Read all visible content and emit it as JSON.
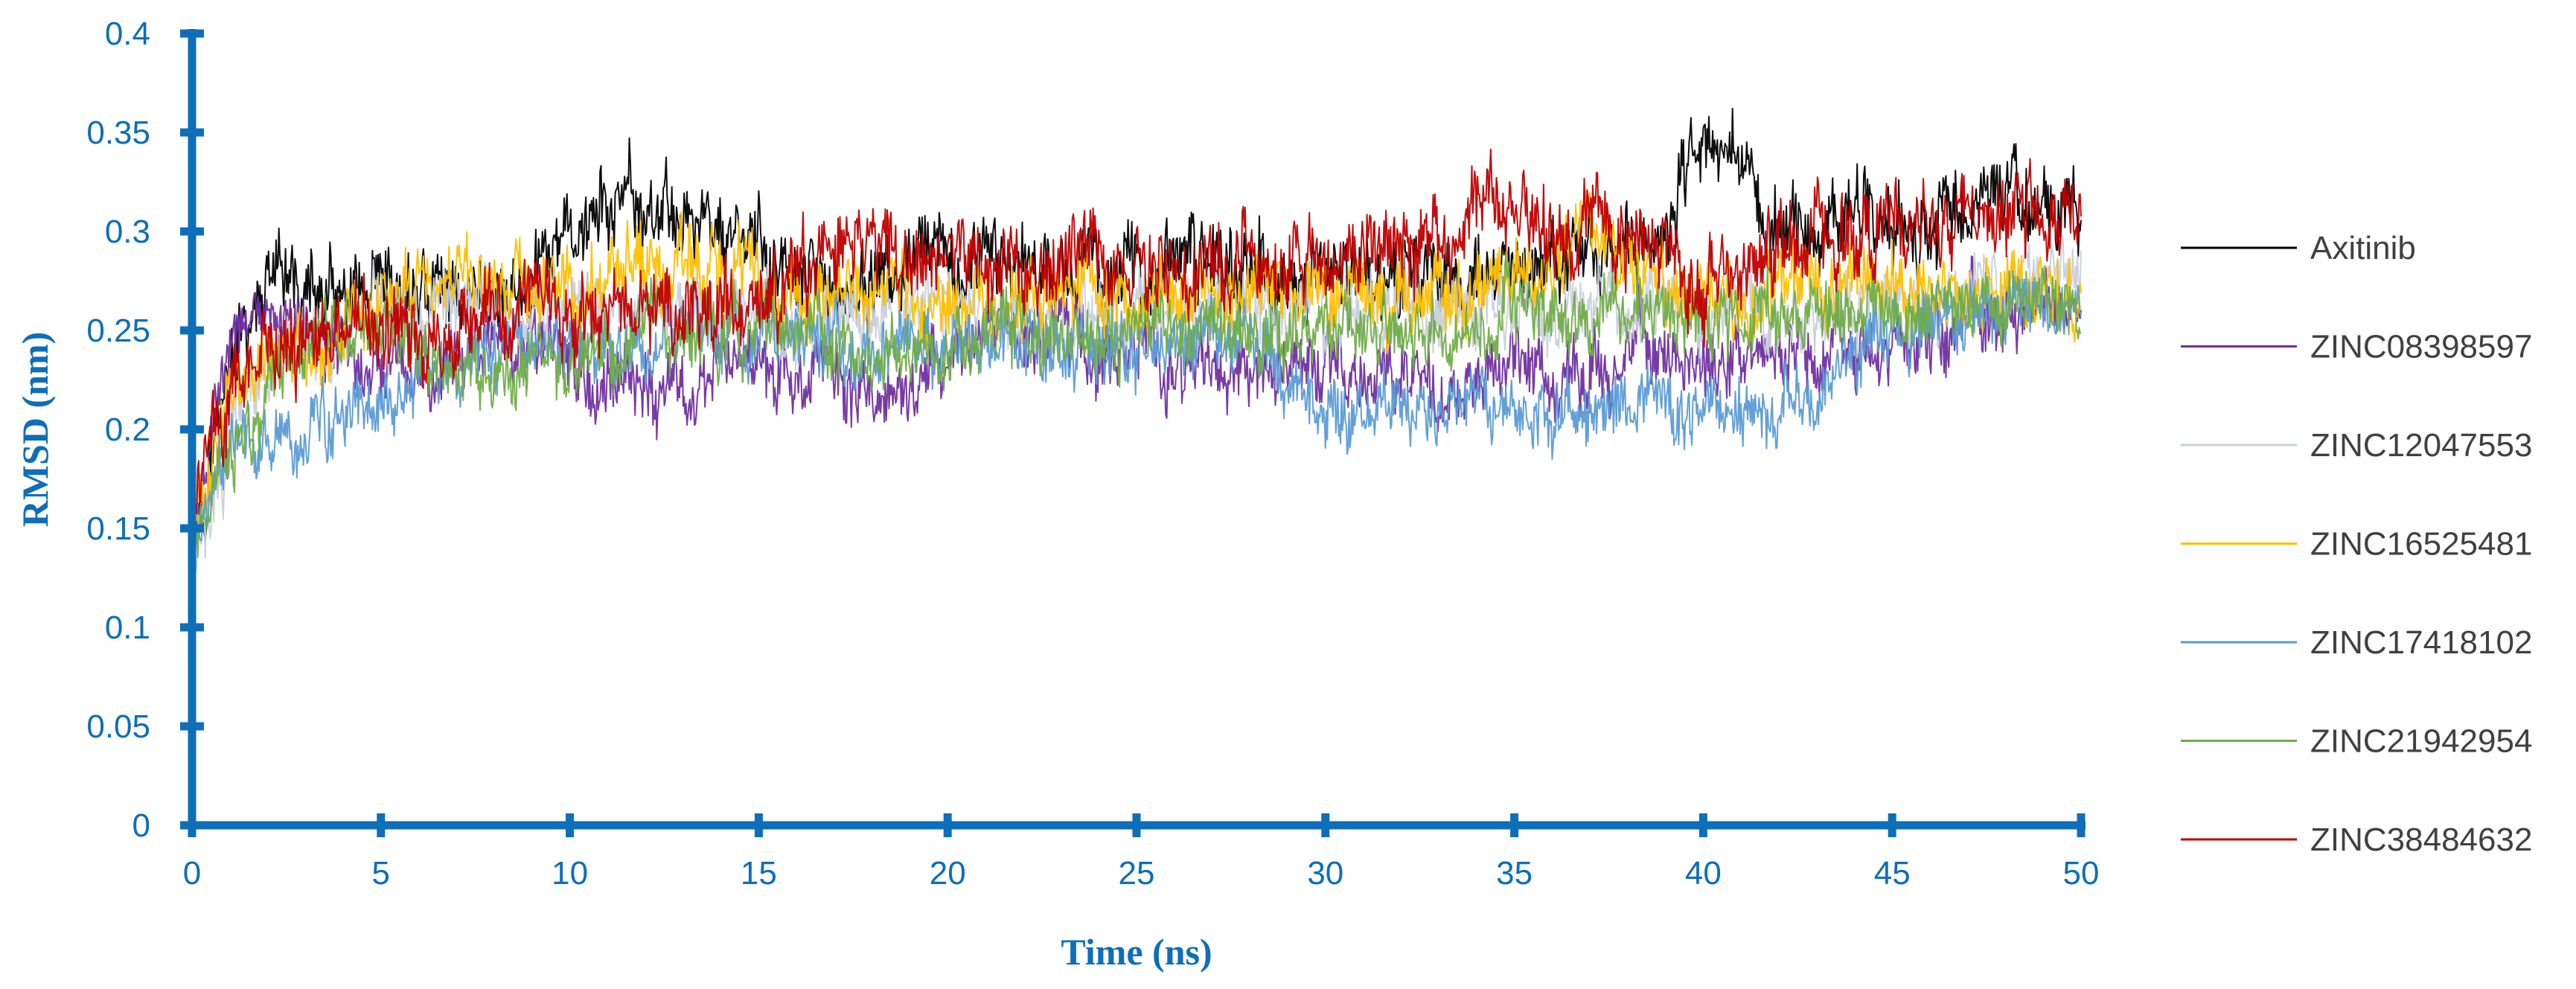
{
  "chart_data": {
    "type": "line",
    "title": "",
    "xlabel": "Time (ns)",
    "ylabel": "RMSD (nm)",
    "xlim": [
      0,
      50
    ],
    "ylim": [
      0,
      0.4
    ],
    "xticks": [
      0,
      5,
      10,
      15,
      20,
      25,
      30,
      35,
      40,
      45,
      50
    ],
    "yticks": [
      0,
      0.05,
      0.1,
      0.15,
      0.2,
      0.25,
      0.3,
      0.35,
      0.4
    ],
    "xtick_labels": [
      "0",
      "5",
      "10",
      "15",
      "20",
      "25",
      "30",
      "35",
      "40",
      "45",
      "50"
    ],
    "ytick_labels": [
      "0",
      "0.05",
      "0.1",
      "0.15",
      "0.2",
      "0.25",
      "0.3",
      "0.35",
      "0.4"
    ],
    "grid": false,
    "legend_position": "right",
    "x": [
      0,
      0.5,
      1,
      2,
      3,
      4,
      5,
      6,
      7,
      8,
      9,
      10,
      11,
      12,
      13,
      14,
      15,
      16,
      17,
      18,
      19,
      20,
      21,
      22,
      23,
      24,
      25,
      26,
      27,
      28,
      29,
      30,
      31,
      32,
      33,
      34,
      35,
      36,
      37,
      38,
      39,
      40,
      41,
      42,
      43,
      44,
      45,
      46,
      47,
      48,
      49,
      50
    ],
    "series": [
      {
        "name": "Axitinib",
        "color": "#000000",
        "noise": 0.018,
        "values": [
          0.14,
          0.19,
          0.23,
          0.27,
          0.27,
          0.26,
          0.26,
          0.27,
          0.27,
          0.27,
          0.27,
          0.3,
          0.31,
          0.31,
          0.31,
          0.3,
          0.29,
          0.27,
          0.27,
          0.27,
          0.28,
          0.28,
          0.28,
          0.29,
          0.28,
          0.28,
          0.28,
          0.28,
          0.29,
          0.28,
          0.27,
          0.28,
          0.28,
          0.28,
          0.28,
          0.28,
          0.27,
          0.28,
          0.29,
          0.29,
          0.3,
          0.35,
          0.34,
          0.3,
          0.3,
          0.31,
          0.31,
          0.3,
          0.31,
          0.32,
          0.31,
          0.31
        ]
      },
      {
        "name": "ZINC08398597",
        "color": "#7030A0",
        "noise": 0.016,
        "values": [
          0.14,
          0.2,
          0.24,
          0.26,
          0.25,
          0.24,
          0.23,
          0.23,
          0.24,
          0.24,
          0.24,
          0.23,
          0.23,
          0.22,
          0.22,
          0.23,
          0.23,
          0.23,
          0.23,
          0.21,
          0.22,
          0.24,
          0.25,
          0.24,
          0.25,
          0.24,
          0.24,
          0.23,
          0.23,
          0.23,
          0.23,
          0.23,
          0.22,
          0.23,
          0.22,
          0.23,
          0.23,
          0.22,
          0.23,
          0.24,
          0.24,
          0.23,
          0.24,
          0.24,
          0.24,
          0.24,
          0.24,
          0.25,
          0.26,
          0.26,
          0.26,
          0.26
        ]
      },
      {
        "name": "ZINC12047553",
        "color": "#C9D0DA",
        "noise": 0.016,
        "values": [
          0.13,
          0.15,
          0.2,
          0.23,
          0.24,
          0.25,
          0.26,
          0.26,
          0.26,
          0.26,
          0.26,
          0.26,
          0.26,
          0.26,
          0.26,
          0.26,
          0.26,
          0.26,
          0.26,
          0.26,
          0.26,
          0.26,
          0.26,
          0.26,
          0.26,
          0.26,
          0.26,
          0.26,
          0.26,
          0.26,
          0.26,
          0.26,
          0.26,
          0.26,
          0.26,
          0.26,
          0.26,
          0.26,
          0.26,
          0.26,
          0.26,
          0.26,
          0.26,
          0.26,
          0.26,
          0.26,
          0.26,
          0.26,
          0.27,
          0.27,
          0.27,
          0.27
        ]
      },
      {
        "name": "ZINC16525481",
        "color": "#FFC000",
        "noise": 0.017,
        "values": [
          0.15,
          0.18,
          0.21,
          0.23,
          0.24,
          0.25,
          0.26,
          0.27,
          0.28,
          0.27,
          0.27,
          0.27,
          0.28,
          0.28,
          0.28,
          0.28,
          0.28,
          0.27,
          0.27,
          0.27,
          0.27,
          0.26,
          0.26,
          0.26,
          0.27,
          0.27,
          0.27,
          0.27,
          0.27,
          0.27,
          0.27,
          0.27,
          0.27,
          0.27,
          0.27,
          0.27,
          0.28,
          0.28,
          0.31,
          0.28,
          0.27,
          0.27,
          0.27,
          0.27,
          0.27,
          0.27,
          0.27,
          0.27,
          0.27,
          0.27,
          0.27,
          0.26
        ]
      },
      {
        "name": "ZINC17418102",
        "color": "#5B9BD5",
        "noise": 0.015,
        "values": [
          0.14,
          0.16,
          0.19,
          0.19,
          0.2,
          0.21,
          0.22,
          0.23,
          0.23,
          0.24,
          0.24,
          0.24,
          0.24,
          0.24,
          0.25,
          0.25,
          0.25,
          0.25,
          0.24,
          0.24,
          0.24,
          0.24,
          0.24,
          0.24,
          0.24,
          0.24,
          0.24,
          0.25,
          0.25,
          0.24,
          0.23,
          0.21,
          0.21,
          0.21,
          0.21,
          0.22,
          0.21,
          0.21,
          0.21,
          0.21,
          0.21,
          0.21,
          0.21,
          0.21,
          0.21,
          0.24,
          0.25,
          0.25,
          0.26,
          0.27,
          0.26,
          0.26
        ]
      },
      {
        "name": "ZINC21942954",
        "color": "#70AD47",
        "noise": 0.015,
        "values": [
          0.14,
          0.17,
          0.19,
          0.22,
          0.24,
          0.25,
          0.25,
          0.24,
          0.23,
          0.23,
          0.23,
          0.23,
          0.24,
          0.25,
          0.25,
          0.25,
          0.25,
          0.25,
          0.24,
          0.24,
          0.24,
          0.24,
          0.25,
          0.25,
          0.25,
          0.25,
          0.25,
          0.25,
          0.25,
          0.25,
          0.25,
          0.25,
          0.25,
          0.25,
          0.25,
          0.25,
          0.26,
          0.26,
          0.26,
          0.26,
          0.26,
          0.26,
          0.26,
          0.26,
          0.26,
          0.26,
          0.26,
          0.26,
          0.26,
          0.26,
          0.26,
          0.26
        ]
      },
      {
        "name": "ZINC38484632",
        "color": "#C00000",
        "noise": 0.018,
        "values": [
          0.15,
          0.19,
          0.22,
          0.24,
          0.24,
          0.25,
          0.25,
          0.25,
          0.25,
          0.26,
          0.26,
          0.26,
          0.26,
          0.26,
          0.26,
          0.26,
          0.26,
          0.27,
          0.29,
          0.3,
          0.29,
          0.28,
          0.29,
          0.28,
          0.29,
          0.29,
          0.28,
          0.28,
          0.28,
          0.28,
          0.28,
          0.29,
          0.29,
          0.29,
          0.3,
          0.31,
          0.32,
          0.3,
          0.3,
          0.3,
          0.29,
          0.28,
          0.28,
          0.29,
          0.3,
          0.3,
          0.31,
          0.3,
          0.31,
          0.32,
          0.31,
          0.31
        ]
      }
    ]
  }
}
